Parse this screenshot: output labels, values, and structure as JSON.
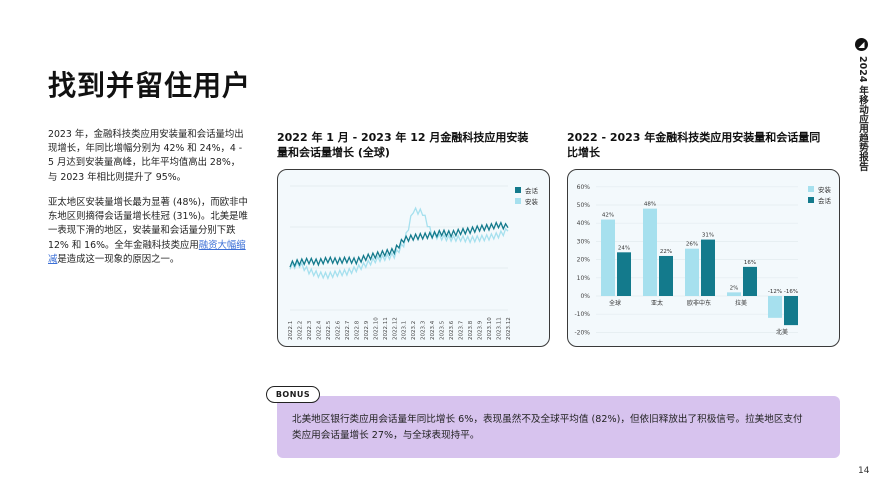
{
  "page": {
    "title": "找到并留住用户",
    "side_label": "2024 年移动应用趋势报告",
    "page_number": "14"
  },
  "body": {
    "paragraph1": "2023 年，金融科技类应用安装量和会话量均出现增长，年同比增幅分别为 42% 和 24%，4 - 5 月达到安装量高峰，比年平均值高出 28%，与 2023 年相比则提升了 95%。",
    "paragraph2_pre": "亚太地区安装量增长最为显著 (48%)，而欧非中东地区则摘得会话量增长桂冠 (31%)。北美是唯一表现下滑的地区，安装量和会话量分别下跌 12% 和 16%。全年金融科技类应用",
    "paragraph2_link": "融资大幅缩减",
    "paragraph2_post": "是造成这一现象的原因之一。"
  },
  "bonus": {
    "label": "BONUS",
    "text": "北美地区银行类应用会话量年同比增长 6%，表现虽然不及全球平均值 (82%)，但依旧释放出了积极信号。拉美地区支付类应用会话量增长 27%，与全球表现持平。"
  },
  "colors": {
    "install": "#a6e0ee",
    "session": "#137a8c",
    "card_bg": "#f3f9fc",
    "bonus_bg": "#d7c3ee"
  },
  "chart_data": [
    {
      "type": "line",
      "title": "2022 年 1 月 - 2023 年 12 月金融科技应用安装量和会话量增长 (全球)",
      "categories": [
        "2022.1",
        "2022.2",
        "2022.3",
        "2022.4",
        "2022.5",
        "2022.6",
        "2022.7",
        "2022.8",
        "2022.9",
        "2022.10",
        "2022.11",
        "2022.12",
        "2023.1",
        "2023.2",
        "2023.3",
        "2023.4",
        "2023.5",
        "2023.6",
        "2023.7",
        "2023.8",
        "2023.9",
        "2023.10",
        "2023.11",
        "2023.12"
      ],
      "legend": [
        "会话",
        "安装"
      ],
      "series": [
        {
          "name": "会话",
          "color": "#137a8c",
          "values": [
            40,
            42,
            43,
            42,
            44,
            43,
            44,
            43,
            46,
            48,
            50,
            52,
            62,
            64,
            65,
            66,
            68,
            67,
            69,
            70,
            72,
            73,
            75,
            73
          ]
        },
        {
          "name": "安装",
          "color": "#a6e0ee",
          "values": [
            38,
            40,
            34,
            31,
            30,
            32,
            33,
            36,
            40,
            44,
            46,
            48,
            58,
            88,
            86,
            66,
            64,
            63,
            63,
            62,
            63,
            64,
            66,
            70
          ]
        }
      ],
      "xlabel": "",
      "ylabel": "",
      "grid": true,
      "legend_position": "top-right"
    },
    {
      "type": "bar",
      "title": "2022 - 2023 年金融科技类应用安装量和会话量同比增长",
      "categories": [
        "全球",
        "亚太",
        "欧非中东",
        "拉美",
        "北美"
      ],
      "series": [
        {
          "name": "安装",
          "color": "#a6e0ee",
          "values": [
            42,
            48,
            26,
            2,
            -12
          ]
        },
        {
          "name": "会话",
          "color": "#137a8c",
          "values": [
            24,
            22,
            31,
            16,
            -16
          ]
        }
      ],
      "y_ticks": [
        "60%",
        "50%",
        "40%",
        "30%",
        "20%",
        "10%",
        "0%",
        "-10%",
        "-20%"
      ],
      "ylim": [
        -20,
        60
      ],
      "legend": [
        "安装",
        "会话"
      ],
      "legend_position": "top-right",
      "grid": true
    }
  ]
}
